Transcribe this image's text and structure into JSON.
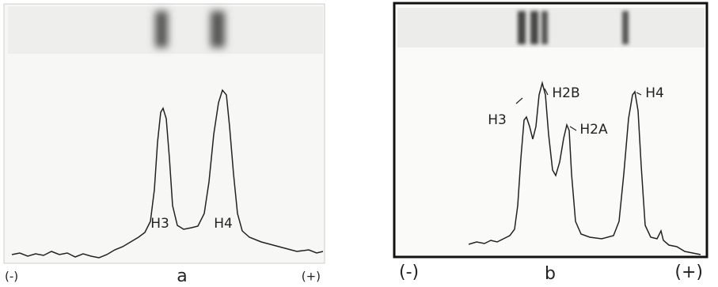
{
  "panels": [
    {
      "peak_labels": [
        "H3",
        "H4"
      ],
      "left_end": "(-)",
      "caption": "a",
      "right_end": "(+)"
    },
    {
      "peak_labels": [
        "H3",
        "H2B",
        "H2A",
        "H4"
      ],
      "left_end": "(-)",
      "caption": "b",
      "right_end": "(+)"
    }
  ]
}
